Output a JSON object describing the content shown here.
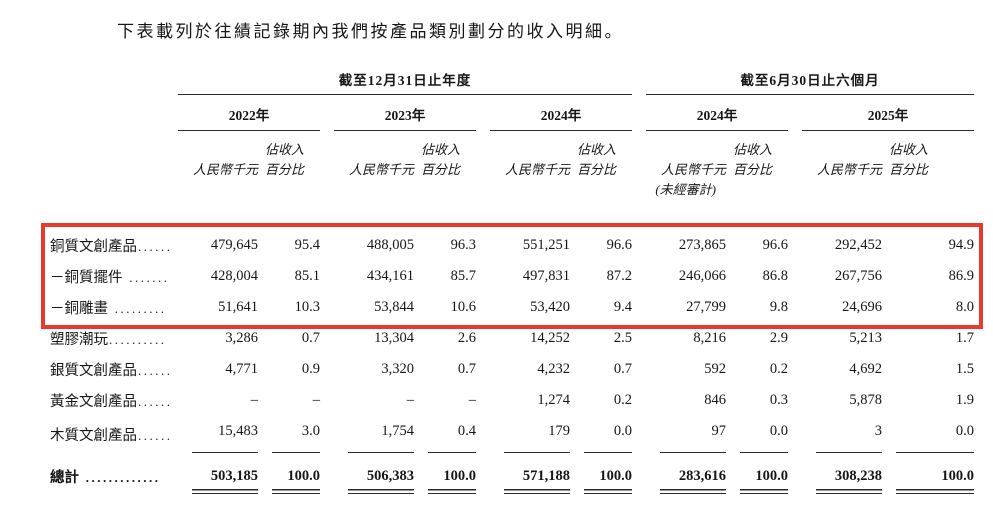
{
  "page": {
    "title": "下表載列於往績記錄期內我們按產品類別劃分的收入明細。"
  },
  "table": {
    "highlight_color": "#e8392e",
    "period_groups": [
      {
        "label": "截至12月31日止年度",
        "years": [
          "2022年",
          "2023年",
          "2024年"
        ]
      },
      {
        "label": "截至6月30日止六個月",
        "years": [
          "2024年",
          "2025年"
        ]
      }
    ],
    "column_labels": {
      "amount": "人民幣千元",
      "share_line1": "佔收入",
      "share_line2": "百分比",
      "unaudited": "(未經審計)"
    },
    "rows": [
      {
        "label": "銅質文創產品",
        "leader": "......",
        "highlighted": true,
        "values": [
          "479,645",
          "95.4",
          "488,005",
          "96.3",
          "551,251",
          "96.6",
          "273,865",
          "96.6",
          "292,452",
          "94.9"
        ]
      },
      {
        "label": "－銅質擺件",
        "leader": " .......",
        "highlighted": true,
        "values": [
          "428,004",
          "85.1",
          "434,161",
          "85.7",
          "497,831",
          "87.2",
          "246,066",
          "86.8",
          "267,756",
          "86.9"
        ]
      },
      {
        "label": "－銅雕畫",
        "leader": " .........",
        "highlighted": true,
        "values": [
          "51,641",
          "10.3",
          "53,844",
          "10.6",
          "53,420",
          "9.4",
          "27,799",
          "9.8",
          "24,696",
          "8.0"
        ]
      },
      {
        "label": "塑膠潮玩",
        "leader": "..........",
        "highlighted": false,
        "values": [
          "3,286",
          "0.7",
          "13,304",
          "2.6",
          "14,252",
          "2.5",
          "8,216",
          "2.9",
          "5,213",
          "1.7"
        ]
      },
      {
        "label": "銀質文創產品",
        "leader": "......",
        "highlighted": false,
        "values": [
          "4,771",
          "0.9",
          "3,320",
          "0.7",
          "4,232",
          "0.7",
          "592",
          "0.2",
          "4,692",
          "1.5"
        ]
      },
      {
        "label": "黃金文創產品",
        "leader": "......",
        "highlighted": false,
        "values": [
          "–",
          "–",
          "–",
          "–",
          "1,274",
          "0.2",
          "846",
          "0.3",
          "5,878",
          "1.9"
        ]
      },
      {
        "label": "木質文創產品",
        "leader": "......",
        "highlighted": false,
        "last_data_row": true,
        "values": [
          "15,483",
          "3.0",
          "1,754",
          "0.4",
          "179",
          "0.0",
          "97",
          "0.0",
          "3",
          "0.0"
        ]
      }
    ],
    "total_row": {
      "label": "總計",
      "leader": " .............",
      "values": [
        "503,185",
        "100.0",
        "506,383",
        "100.0",
        "571,188",
        "100.0",
        "283,616",
        "100.0",
        "308,238",
        "100.0"
      ]
    }
  }
}
